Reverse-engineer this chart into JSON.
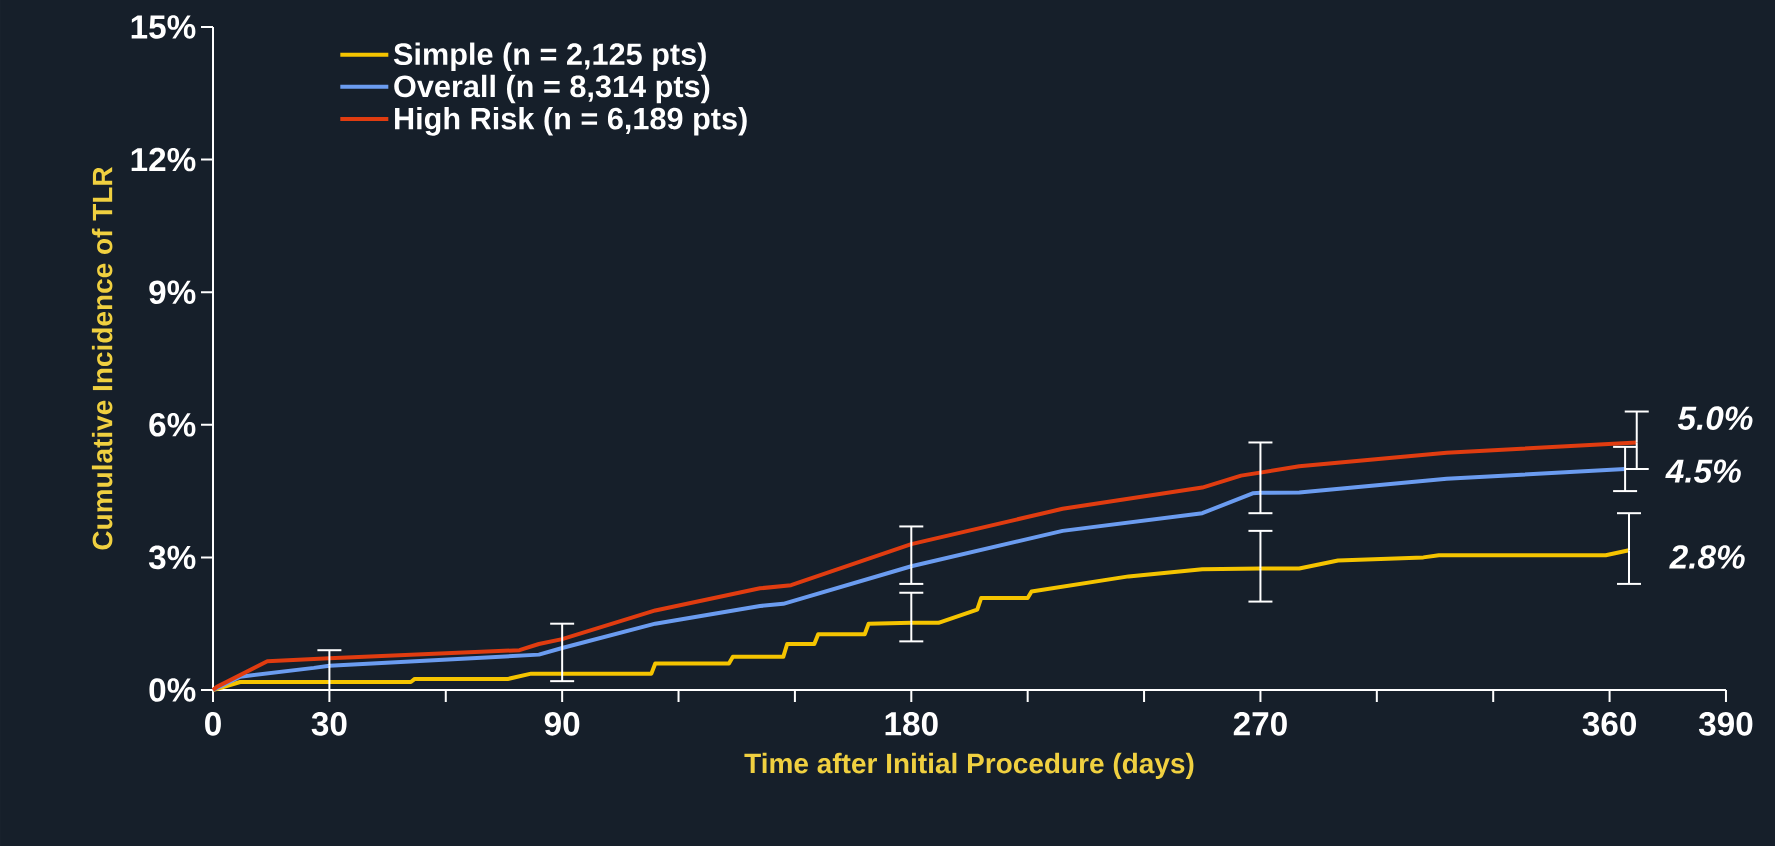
{
  "chart_data": {
    "type": "line",
    "xlabel": "Time after Initial Procedure (days)",
    "ylabel": "Cumulative Incidence of TLR",
    "xlim": [
      0,
      390
    ],
    "ylim": [
      0,
      15
    ],
    "xticks": [
      0,
      30,
      {
        "value": 60,
        "label": null
      },
      90,
      {
        "value": 120,
        "label": null
      },
      {
        "value": 150,
        "label": null
      },
      180,
      {
        "value": 210,
        "label": null
      },
      {
        "value": 240,
        "label": null
      },
      270,
      {
        "value": 300,
        "label": null
      },
      {
        "value": 330,
        "label": null
      },
      360,
      390
    ],
    "yticks": [
      {
        "value": 0,
        "label": "0%"
      },
      {
        "value": 3,
        "label": "3%"
      },
      {
        "value": 6,
        "label": "6%"
      },
      {
        "value": 9,
        "label": "9%"
      },
      {
        "value": 12,
        "label": "12%"
      },
      {
        "value": 15,
        "label": "15%"
      }
    ],
    "legend": "top left",
    "annotations": [
      {
        "text": "5.0%",
        "x": 367,
        "y": 5.6
      },
      {
        "text": "4.5%",
        "x": 364,
        "y": 5.0
      },
      {
        "text": "2.8%",
        "x": 365,
        "y": 3.16
      }
    ],
    "series": [
      {
        "name": "Simple (n = 2,125 pts)",
        "color": "#f5c400",
        "x": [
          0,
          7,
          51,
          52,
          76,
          82,
          113,
          114,
          133,
          134,
          147,
          148,
          155,
          156,
          168,
          169,
          180,
          187,
          197,
          198,
          210,
          211,
          236,
          255,
          270,
          280,
          290,
          312,
          316,
          359,
          365
        ],
        "values": [
          0,
          0.18,
          0.18,
          0.25,
          0.25,
          0.37,
          0.37,
          0.6,
          0.6,
          0.75,
          0.75,
          1.04,
          1.04,
          1.26,
          1.26,
          1.5,
          1.52,
          1.52,
          1.82,
          2.08,
          2.08,
          2.23,
          2.57,
          2.73,
          2.75,
          2.75,
          2.93,
          3.0,
          3.05,
          3.05,
          3.16
        ],
        "errors": [
          null,
          null,
          null,
          null,
          null,
          null,
          null,
          null,
          null,
          null,
          null,
          null,
          null,
          null,
          null,
          null,
          [
            1.1,
            2.2
          ],
          null,
          null,
          null,
          null,
          null,
          null,
          null,
          [
            2.0,
            3.6
          ],
          null,
          null,
          null,
          null,
          null,
          [
            2.4,
            4.0
          ]
        ]
      },
      {
        "name": "Overall (n = 8,314 pts)",
        "color": "#6b9cf0",
        "x": [
          0,
          7,
          26,
          30,
          84,
          90,
          114,
          141,
          147,
          180,
          219,
          255,
          268,
          270,
          280,
          318,
          364
        ],
        "values": [
          0,
          0.3,
          0.5,
          0.55,
          0.8,
          0.95,
          1.5,
          1.9,
          1.95,
          2.8,
          3.6,
          4.0,
          4.45,
          4.46,
          4.47,
          4.78,
          5.0
        ],
        "errors": [
          null,
          null,
          null,
          [
            0.0,
            0.9
          ],
          null,
          [
            0.2,
            1.5
          ],
          null,
          null,
          null,
          [
            2.4,
            3.7
          ],
          null,
          null,
          null,
          [
            4.0,
            5.6
          ],
          null,
          null,
          [
            4.5,
            5.5
          ]
        ]
      },
      {
        "name": "High Risk (n = 6,189 pts)",
        "color": "#e03c10",
        "x": [
          0,
          1,
          14,
          30,
          79,
          84,
          90,
          114,
          141,
          149,
          180,
          219,
          255,
          265,
          280,
          318,
          367
        ],
        "values": [
          0,
          0.07,
          0.65,
          0.72,
          0.9,
          1.04,
          1.15,
          1.8,
          2.3,
          2.37,
          3.3,
          4.1,
          4.58,
          4.85,
          5.06,
          5.37,
          5.6
        ],
        "errors": [
          null,
          null,
          null,
          null,
          null,
          null,
          null,
          null,
          null,
          null,
          null,
          null,
          null,
          null,
          null,
          null,
          [
            5.0,
            6.3
          ]
        ]
      }
    ]
  }
}
